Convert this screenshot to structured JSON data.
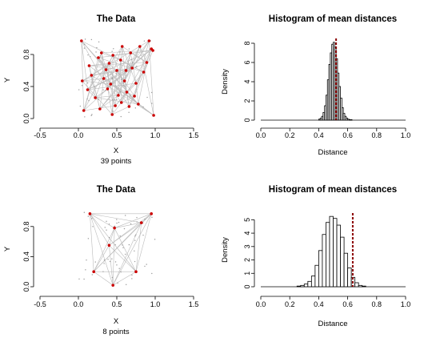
{
  "chart_data": [
    {
      "type": "scatter",
      "title": "The Data",
      "xlabel": "X",
      "ylabel": "Y",
      "subtitle": "39 points",
      "xlim": [
        -0.5,
        1.5
      ],
      "ylim": [
        0,
        1
      ],
      "x_ticks": [
        "-0.5",
        "0.0",
        "0.5",
        "1.0",
        "1.5"
      ],
      "y_ticks": [
        "0.0",
        "0.4",
        "0.8"
      ],
      "point_color": "#cc0000",
      "edge_color": "#bbbbbb",
      "points": [
        [
          0.04,
          0.97
        ],
        [
          0.14,
          0.66
        ],
        [
          0.05,
          0.47
        ],
        [
          0.07,
          0.1
        ],
        [
          0.22,
          0.26
        ],
        [
          0.17,
          0.54
        ],
        [
          0.3,
          0.82
        ],
        [
          0.36,
          0.61
        ],
        [
          0.4,
          0.69
        ],
        [
          0.33,
          0.5
        ],
        [
          0.45,
          0.79
        ],
        [
          0.38,
          0.37
        ],
        [
          0.28,
          0.12
        ],
        [
          0.44,
          0.05
        ],
        [
          0.48,
          0.16
        ],
        [
          0.52,
          0.29
        ],
        [
          0.5,
          0.6
        ],
        [
          0.55,
          0.73
        ],
        [
          0.57,
          0.9
        ],
        [
          0.6,
          0.47
        ],
        [
          0.56,
          0.2
        ],
        [
          0.63,
          0.33
        ],
        [
          0.68,
          0.82
        ],
        [
          0.7,
          0.63
        ],
        [
          0.66,
          0.15
        ],
        [
          0.75,
          0.44
        ],
        [
          0.8,
          0.9
        ],
        [
          0.73,
          0.28
        ],
        [
          0.85,
          0.58
        ],
        [
          0.89,
          0.7
        ],
        [
          0.92,
          0.97
        ],
        [
          0.95,
          0.87
        ],
        [
          0.78,
          0.18
        ],
        [
          0.62,
          0.6
        ],
        [
          0.42,
          0.43
        ],
        [
          0.26,
          0.76
        ],
        [
          0.12,
          0.36
        ],
        [
          0.98,
          0.04
        ],
        [
          0.97,
          0.85
        ]
      ]
    },
    {
      "type": "bar",
      "title": "Histogram of mean distances",
      "xlabel": "Distance",
      "ylabel": "Density",
      "xlim": [
        0,
        1
      ],
      "ylim": [
        0,
        8.5
      ],
      "x_ticks": [
        "0.0",
        "0.2",
        "0.4",
        "0.6",
        "0.8",
        "1.0"
      ],
      "y_ticks": [
        "0",
        "2",
        "4",
        "6",
        "8"
      ],
      "bin_width": 0.01,
      "bins_start": [
        0.4,
        0.41,
        0.42,
        0.43,
        0.44,
        0.45,
        0.46,
        0.47,
        0.48,
        0.49,
        0.5,
        0.51,
        0.52,
        0.53,
        0.54,
        0.55,
        0.56,
        0.57,
        0.58,
        0.59,
        0.6,
        0.61,
        0.62
      ],
      "density": [
        0.1,
        0.2,
        0.4,
        0.8,
        1.5,
        2.6,
        4.2,
        5.8,
        7.0,
        7.9,
        8.1,
        7.6,
        6.4,
        4.9,
        3.5,
        2.3,
        1.3,
        0.7,
        0.4,
        0.2,
        0.1,
        0.05,
        0.05
      ],
      "vline": 0.52,
      "vline_color": "#8b0000"
    },
    {
      "type": "scatter",
      "title": "The Data",
      "xlabel": "X",
      "ylabel": "Y",
      "subtitle": "8 points",
      "xlim": [
        -0.5,
        1.5
      ],
      "ylim": [
        0,
        1
      ],
      "x_ticks": [
        "-0.5",
        "0.0",
        "0.5",
        "1.0",
        "1.5"
      ],
      "y_ticks": [
        "0.0",
        "0.4",
        "0.8"
      ],
      "point_color": "#cc0000",
      "edge_color": "#bbbbbb",
      "points": [
        [
          0.15,
          0.97
        ],
        [
          0.95,
          0.97
        ],
        [
          0.82,
          0.85
        ],
        [
          0.47,
          0.78
        ],
        [
          0.4,
          0.55
        ],
        [
          0.2,
          0.2
        ],
        [
          0.75,
          0.2
        ],
        [
          0.45,
          0.02
        ]
      ]
    },
    {
      "type": "bar",
      "title": "Histogram of mean distances",
      "xlabel": "Distance",
      "ylabel": "Density",
      "xlim": [
        0,
        1
      ],
      "ylim": [
        0,
        5.5
      ],
      "x_ticks": [
        "0.0",
        "0.2",
        "0.4",
        "0.6",
        "0.8",
        "1.0"
      ],
      "y_ticks": [
        "0",
        "1",
        "2",
        "3",
        "4",
        "5"
      ],
      "bin_width": 0.025,
      "bins_start": [
        0.25,
        0.275,
        0.3,
        0.325,
        0.35,
        0.375,
        0.4,
        0.425,
        0.45,
        0.475,
        0.5,
        0.525,
        0.55,
        0.575,
        0.6,
        0.625,
        0.65,
        0.675,
        0.7
      ],
      "density": [
        0.05,
        0.1,
        0.2,
        0.4,
        0.8,
        1.6,
        2.7,
        3.9,
        4.8,
        5.25,
        5.1,
        4.6,
        3.7,
        2.5,
        1.4,
        0.7,
        0.3,
        0.1,
        0.05
      ],
      "vline": 0.635,
      "vline_color": "#8b0000"
    }
  ]
}
